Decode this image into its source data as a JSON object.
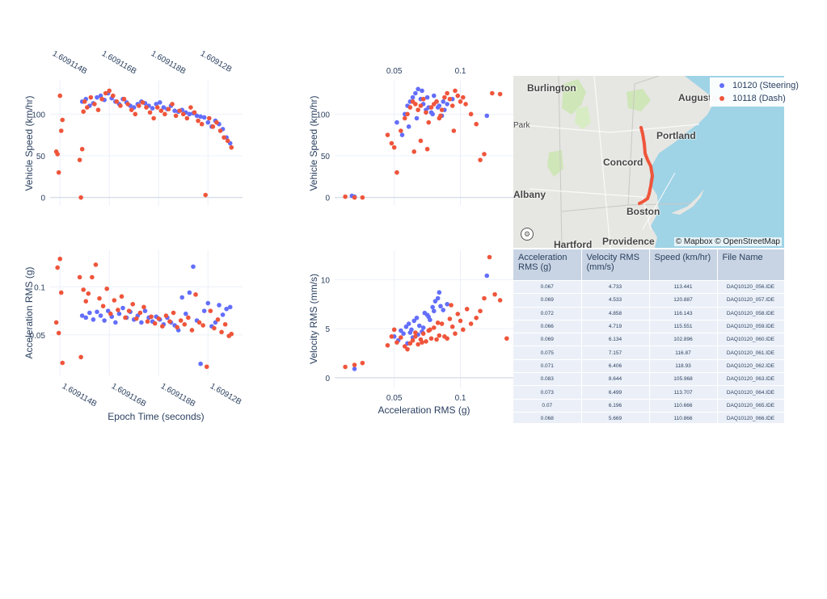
{
  "legend": [
    {
      "name": "10120 (Steering)",
      "color": "#636efa"
    },
    {
      "name": "10118 (Dash)",
      "color": "#ef553b"
    }
  ],
  "chart_data": [
    {
      "type": "scatter",
      "xlabel": "",
      "ylabel": "Vehicle Speed (km/hr)",
      "x_ticks": [
        "1.609114B",
        "1.609116B",
        "1.609118B",
        "1.60912B"
      ],
      "y_ticks": [
        "0",
        "50",
        "100"
      ],
      "xlim": [
        1609113600,
        1609121400
      ],
      "ylim": [
        -10,
        140
      ],
      "series": [
        {
          "name": "10120 (Steering)",
          "x": [
            1609114900,
            1609115050,
            1609115200,
            1609115350,
            1609115500,
            1609115650,
            1609115800,
            1609115950,
            1609116100,
            1609116250,
            1609116400,
            1609116550,
            1609116700,
            1609116850,
            1609117000,
            1609117150,
            1609117300,
            1609117450,
            1609117600,
            1609117750,
            1609117900,
            1609118050,
            1609118200,
            1609118350,
            1609118500,
            1609118650,
            1609118800,
            1609118950,
            1609119100,
            1609119250,
            1609119400,
            1609119550,
            1609119700,
            1609119850,
            1609120000,
            1609120150,
            1609120300,
            1609120450,
            1609120600,
            1609120750,
            1609120900
          ],
          "y": [
            115,
            118,
            110,
            113,
            120,
            122,
            117,
            125,
            119,
            115,
            112,
            118,
            114,
            110,
            108,
            112,
            115,
            113,
            110,
            107,
            112,
            114,
            108,
            106,
            110,
            104,
            103,
            105,
            102,
            100,
            101,
            98,
            97,
            96,
            90,
            85,
            92,
            88,
            82,
            72,
            65
          ]
        },
        {
          "name": "10118 (Dash)",
          "x": [
            1609113850,
            1609113900,
            1609113950,
            1609114000,
            1609114050,
            1609114100,
            1609114800,
            1609114850,
            1609114900,
            1609114950,
            1609115000,
            1609115100,
            1609115250,
            1609115400,
            1609115550,
            1609115700,
            1609115850,
            1609116000,
            1609116150,
            1609116300,
            1609116450,
            1609116600,
            1609116750,
            1609116900,
            1609117050,
            1609117200,
            1609117350,
            1609117500,
            1609117650,
            1609117800,
            1609117950,
            1609118100,
            1609118250,
            1609118400,
            1609118550,
            1609118700,
            1609118850,
            1609119000,
            1609119150,
            1609119300,
            1609119450,
            1609119600,
            1609119750,
            1609119900,
            1609120050,
            1609120200,
            1609120350,
            1609120500,
            1609120650,
            1609120800,
            1609120950
          ],
          "y": [
            55,
            52,
            30,
            122,
            80,
            93,
            45,
            0,
            58,
            103,
            115,
            108,
            120,
            112,
            105,
            118,
            125,
            128,
            122,
            115,
            110,
            118,
            112,
            105,
            100,
            110,
            114,
            108,
            102,
            95,
            108,
            104,
            100,
            106,
            112,
            98,
            104,
            100,
            95,
            108,
            102,
            92,
            88,
            3,
            95,
            85,
            90,
            80,
            72,
            68,
            60
          ]
        }
      ]
    },
    {
      "type": "scatter",
      "xlabel": "",
      "ylabel": "Vehicle Speed (km/hr)",
      "x_ticks": [
        "0.05",
        "0.1"
      ],
      "y_ticks": [
        "0",
        "50",
        "100"
      ],
      "xlim": [
        0.005,
        0.14
      ],
      "ylim": [
        -10,
        140
      ],
      "series": [
        {
          "name": "10120 (Steering)",
          "x": [
            0.018,
            0.02,
            0.052,
            0.056,
            0.058,
            0.06,
            0.062,
            0.064,
            0.066,
            0.068,
            0.07,
            0.072,
            0.074,
            0.076,
            0.078,
            0.08,
            0.082,
            0.084,
            0.086,
            0.088,
            0.09,
            0.094,
            0.061,
            0.067,
            0.071,
            0.075,
            0.079,
            0.083,
            0.087,
            0.12
          ],
          "y": [
            2,
            1,
            90,
            75,
            100,
            110,
            115,
            120,
            125,
            130,
            118,
            112,
            105,
            108,
            102,
            122,
            115,
            110,
            98,
            105,
            112,
            118,
            85,
            95,
            128,
            120,
            100,
            108,
            115,
            98
          ]
        },
        {
          "name": "10118 (Dash)",
          "x": [
            0.013,
            0.02,
            0.026,
            0.045,
            0.048,
            0.05,
            0.052,
            0.055,
            0.058,
            0.06,
            0.062,
            0.064,
            0.066,
            0.068,
            0.07,
            0.072,
            0.074,
            0.076,
            0.078,
            0.08,
            0.082,
            0.084,
            0.086,
            0.088,
            0.09,
            0.092,
            0.094,
            0.096,
            0.098,
            0.1,
            0.102,
            0.104,
            0.108,
            0.112,
            0.115,
            0.118,
            0.124,
            0.13,
            0.065,
            0.07,
            0.075,
            0.085,
            0.095
          ],
          "y": [
            1,
            0,
            0,
            75,
            65,
            60,
            30,
            80,
            95,
            100,
            108,
            115,
            112,
            105,
            110,
            118,
            102,
            90,
            108,
            112,
            115,
            95,
            105,
            120,
            125,
            118,
            110,
            128,
            122,
            115,
            120,
            112,
            100,
            88,
            45,
            52,
            125,
            124,
            55,
            68,
            58,
            98,
            80
          ]
        }
      ]
    },
    {
      "type": "scatter",
      "xlabel": "Epoch Time (seconds)",
      "ylabel": "Acceleration RMS (g)",
      "x_ticks": [
        "1.609114B",
        "1.609116B",
        "1.609118B",
        "1.60912B"
      ],
      "y_ticks": [
        "0.05",
        "0.1"
      ],
      "xlim": [
        1609113600,
        1609121400
      ],
      "ylim": [
        0.008,
        0.138
      ],
      "series": [
        {
          "name": "10120 (Steering)",
          "x": [
            1609114900,
            1609115050,
            1609115200,
            1609115350,
            1609115500,
            1609115650,
            1609115800,
            1609115950,
            1609116100,
            1609116250,
            1609116400,
            1609116550,
            1609116700,
            1609116850,
            1609117000,
            1609117150,
            1609117300,
            1609117450,
            1609117600,
            1609117750,
            1609117900,
            1609118050,
            1609118200,
            1609118350,
            1609118500,
            1609118650,
            1609118800,
            1609118950,
            1609119100,
            1609119250,
            1609119400,
            1609119550,
            1609119700,
            1609119850,
            1609120000,
            1609120150,
            1609120300,
            1609120450,
            1609120600,
            1609120750,
            1609120900
          ],
          "y": [
            0.07,
            0.068,
            0.073,
            0.066,
            0.074,
            0.07,
            0.065,
            0.075,
            0.069,
            0.063,
            0.072,
            0.078,
            0.068,
            0.074,
            0.066,
            0.07,
            0.063,
            0.075,
            0.068,
            0.064,
            0.069,
            0.066,
            0.061,
            0.068,
            0.063,
            0.06,
            0.055,
            0.089,
            0.072,
            0.094,
            0.121,
            0.065,
            0.02,
            0.075,
            0.083,
            0.059,
            0.063,
            0.081,
            0.071,
            0.077,
            0.079
          ]
        },
        {
          "name": "10118 (Dash)",
          "x": [
            1609113850,
            1609113900,
            1609113950,
            1609114000,
            1609114050,
            1609114100,
            1609114800,
            1609114850,
            1609114950,
            1609115050,
            1609115150,
            1609115300,
            1609115450,
            1609115600,
            1609115750,
            1609115900,
            1609116050,
            1609116200,
            1609116350,
            1609116500,
            1609116650,
            1609116800,
            1609116950,
            1609117100,
            1609117250,
            1609117400,
            1609117550,
            1609117700,
            1609117850,
            1609118000,
            1609118150,
            1609118300,
            1609118450,
            1609118600,
            1609118750,
            1609118900,
            1609119050,
            1609119200,
            1609119350,
            1609119500,
            1609119650,
            1609119800,
            1609119950,
            1609120100,
            1609120250,
            1609120400,
            1609120550,
            1609120700,
            1609120850,
            1609120950
          ],
          "y": [
            0.063,
            0.12,
            0.052,
            0.129,
            0.094,
            0.021,
            0.11,
            0.027,
            0.097,
            0.085,
            0.093,
            0.11,
            0.123,
            0.088,
            0.08,
            0.098,
            0.072,
            0.086,
            0.076,
            0.09,
            0.068,
            0.075,
            0.082,
            0.067,
            0.073,
            0.079,
            0.064,
            0.069,
            0.062,
            0.067,
            0.059,
            0.07,
            0.064,
            0.073,
            0.058,
            0.065,
            0.061,
            0.068,
            0.055,
            0.092,
            0.063,
            0.06,
            0.017,
            0.075,
            0.057,
            0.066,
            0.053,
            0.061,
            0.049,
            0.051
          ]
        }
      ]
    },
    {
      "type": "scatter",
      "xlabel": "Acceleration RMS (g)",
      "ylabel": "Velocity RMS (mm/s)",
      "x_ticks": [
        "0.05",
        "0.1"
      ],
      "y_ticks": [
        "0",
        "5",
        "10"
      ],
      "xlim": [
        0.005,
        0.14
      ],
      "ylim": [
        -1,
        13
      ],
      "series": [
        {
          "name": "10120 (Steering)",
          "x": [
            0.02,
            0.05,
            0.053,
            0.055,
            0.057,
            0.059,
            0.061,
            0.063,
            0.065,
            0.067,
            0.069,
            0.071,
            0.073,
            0.075,
            0.077,
            0.079,
            0.081,
            0.083,
            0.085,
            0.087,
            0.09,
            0.06,
            0.064,
            0.068,
            0.072,
            0.076,
            0.08,
            0.084,
            0.12,
            0.062
          ],
          "y": [
            0.9,
            4.2,
            3.8,
            4.8,
            4.5,
            5.2,
            5.5,
            4.9,
            5.8,
            6.1,
            5.3,
            4.7,
            6.6,
            6.4,
            5.9,
            7.2,
            7.8,
            8.1,
            7.3,
            6.9,
            7.5,
            3.5,
            4.1,
            4.4,
            5.1,
            6.2,
            6.8,
            8.7,
            10.4,
            4.6
          ]
        },
        {
          "name": "10118 (Dash)",
          "x": [
            0.013,
            0.02,
            0.026,
            0.045,
            0.048,
            0.05,
            0.052,
            0.055,
            0.058,
            0.06,
            0.062,
            0.064,
            0.066,
            0.068,
            0.07,
            0.072,
            0.074,
            0.076,
            0.078,
            0.08,
            0.082,
            0.084,
            0.086,
            0.088,
            0.09,
            0.092,
            0.094,
            0.096,
            0.098,
            0.1,
            0.102,
            0.105,
            0.108,
            0.112,
            0.115,
            0.118,
            0.122,
            0.126,
            0.13,
            0.135,
            0.066,
            0.071,
            0.077,
            0.083,
            0.093
          ],
          "y": [
            1.1,
            1.3,
            1.5,
            3.3,
            4.2,
            4.9,
            3.6,
            4.1,
            3.2,
            2.9,
            3.5,
            3.8,
            4.2,
            3.4,
            3.9,
            4.5,
            3.7,
            4.8,
            4.0,
            5.1,
            3.9,
            4.3,
            5.5,
            4.2,
            4.0,
            6.0,
            5.2,
            4.5,
            6.5,
            5.8,
            4.9,
            7.0,
            5.5,
            6.1,
            6.8,
            8.1,
            12.3,
            8.5,
            7.9,
            4.0,
            4.6,
            3.6,
            4.9,
            5.6,
            7.4
          ]
        }
      ]
    }
  ],
  "map": {
    "cities": [
      "Burlington",
      "Augusta",
      "Park",
      "Portland",
      "Concord",
      "Albany",
      "Boston",
      "Hartford",
      "Providence"
    ],
    "credit": "© Mapbox © OpenStreetMap",
    "route_color": "#ef553b"
  },
  "table": {
    "headers": [
      "Acceleration RMS (g)",
      "Velocity RMS (mm/s)",
      "Speed (km/hr)",
      "File Name"
    ],
    "rows": [
      [
        "0.067",
        "4.733",
        "113.441",
        "DAQ10120_056.IDE"
      ],
      [
        "0.069",
        "4.533",
        "120.887",
        "DAQ10120_057.IDE"
      ],
      [
        "0.072",
        "4.858",
        "116.143",
        "DAQ10120_058.IDE"
      ],
      [
        "0.066",
        "4.719",
        "115.551",
        "DAQ10120_059.IDE"
      ],
      [
        "0.069",
        "6.134",
        "102.896",
        "DAQ10120_060.IDE"
      ],
      [
        "0.075",
        "7.157",
        "116.87",
        "DAQ10120_061.IDE"
      ],
      [
        "0.071",
        "6.406",
        "118.93",
        "DAQ10120_062.IDE"
      ],
      [
        "0.083",
        "8.644",
        "105.968",
        "DAQ10120_063.IDE"
      ],
      [
        "0.073",
        "6.499",
        "113.707",
        "DAQ10120_064.IDE"
      ],
      [
        "0.07",
        "6.196",
        "110.666",
        "DAQ10120_065.IDE"
      ],
      [
        "0.068",
        "5.669",
        "110.866",
        "DAQ10120_066.IDE"
      ]
    ]
  }
}
